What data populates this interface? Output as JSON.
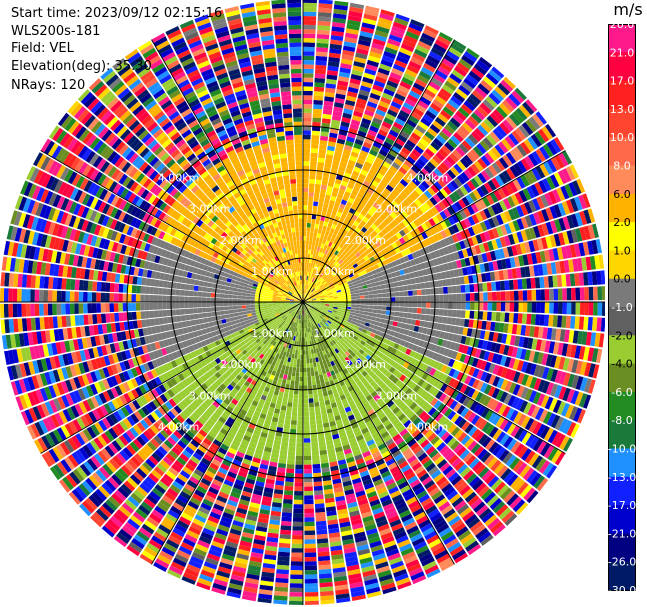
{
  "header": {
    "start_time": "Start time: 2023/09/12 02:15:16",
    "instrument": "WLS200s-181",
    "field": "Field: VEL",
    "elevation": "Elevation(deg): 35.30",
    "nrays": "NRays: 120"
  },
  "colorbar": {
    "unit": "m/s",
    "ticks": [
      "26.0",
      "21.0",
      "17.0",
      "13.0",
      "10.0",
      "8.0",
      "6.0",
      "2.0",
      "1.0",
      "0.0",
      "-1.0",
      "-2.0",
      "-4.0",
      "-6.0",
      "-8.0",
      "-10.0",
      "-13.0",
      "-17.0",
      "-21.0",
      "-26.0",
      "-30.0"
    ],
    "colors": [
      "#ff1a8c",
      "#ff0040",
      "#ff2020",
      "#ff4530",
      "#ff6a4a",
      "#ff8a5a",
      "#ffb300",
      "#ffff00",
      "#ffd700",
      "#7a7a7a",
      "#606060",
      "#9acd32",
      "#6b8e23",
      "#228b22",
      "#1a7a3a",
      "#1e90ff",
      "#1020ff",
      "#0000cd",
      "#000080",
      "#001a66"
    ]
  },
  "range_labels": [
    "1.00km",
    "1.00km",
    "1.00km",
    "1.00km",
    "2.00km",
    "2.00km",
    "2.00km",
    "2.00km",
    "3.00km",
    "3.00km",
    "3.00km",
    "3.00km",
    "4.00km",
    "4.00km",
    "4.00km",
    "4.00km"
  ],
  "chart_data": {
    "type": "ppi",
    "field": "VEL",
    "units": "m/s",
    "n_rays": 120,
    "elevation_deg": 35.3,
    "range_rings_km": [
      1,
      2,
      3,
      4
    ],
    "max_range_km": 6.8,
    "velocity_range": [
      -30,
      26
    ],
    "regions": [
      {
        "sector": "north",
        "velocity_ms": [
          1.0,
          6.0
        ],
        "range_km": [
          0,
          3.8
        ]
      },
      {
        "sector": "east-west",
        "velocity_ms": [
          -1.0,
          0.0
        ],
        "range_km": [
          1.5,
          3.5
        ]
      },
      {
        "sector": "south",
        "velocity_ms": [
          -6.0,
          -2.0
        ],
        "range_km": [
          0,
          3.7
        ]
      },
      {
        "sector": "all",
        "velocity_ms": [
          -30,
          26
        ],
        "range_km": [
          3.8,
          6.8
        ],
        "note": "noise"
      }
    ]
  }
}
